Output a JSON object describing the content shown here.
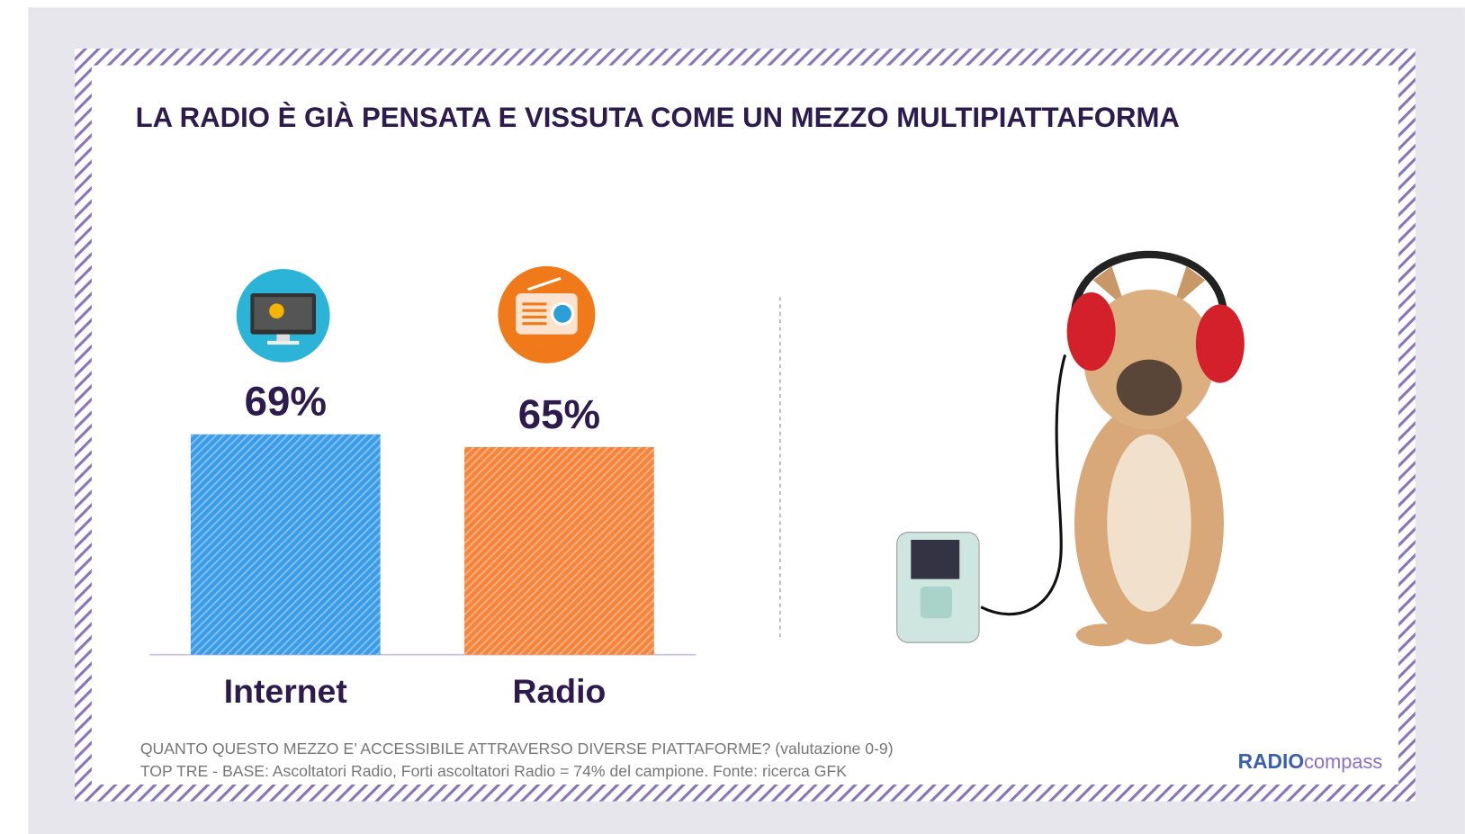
{
  "chart_data": {
    "type": "bar",
    "title": "LA RADIO È GIÀ PENSATA E VISSUTA COME UN MEZZO MULTIPIATTAFORMA",
    "categories": [
      "Internet",
      "Radio"
    ],
    "values": [
      69,
      65
    ],
    "value_labels": [
      "69%",
      "65%"
    ],
    "colors": [
      "#3a9ce6",
      "#f6833a"
    ],
    "ylim": [
      0,
      100
    ],
    "notes": [
      "QUANTO QUESTO MEZZO E’ ACCESSIBILE ATTRAVERSO DIVERSE PIATTAFORME? (valutazione 0-9)",
      "TOP TRE - BASE: Ascoltatori Radio, Forti ascoltatori Radio = 74% del campione. Fonte: ricerca GFK"
    ],
    "brand": [
      "RADIO",
      "compass"
    ]
  }
}
